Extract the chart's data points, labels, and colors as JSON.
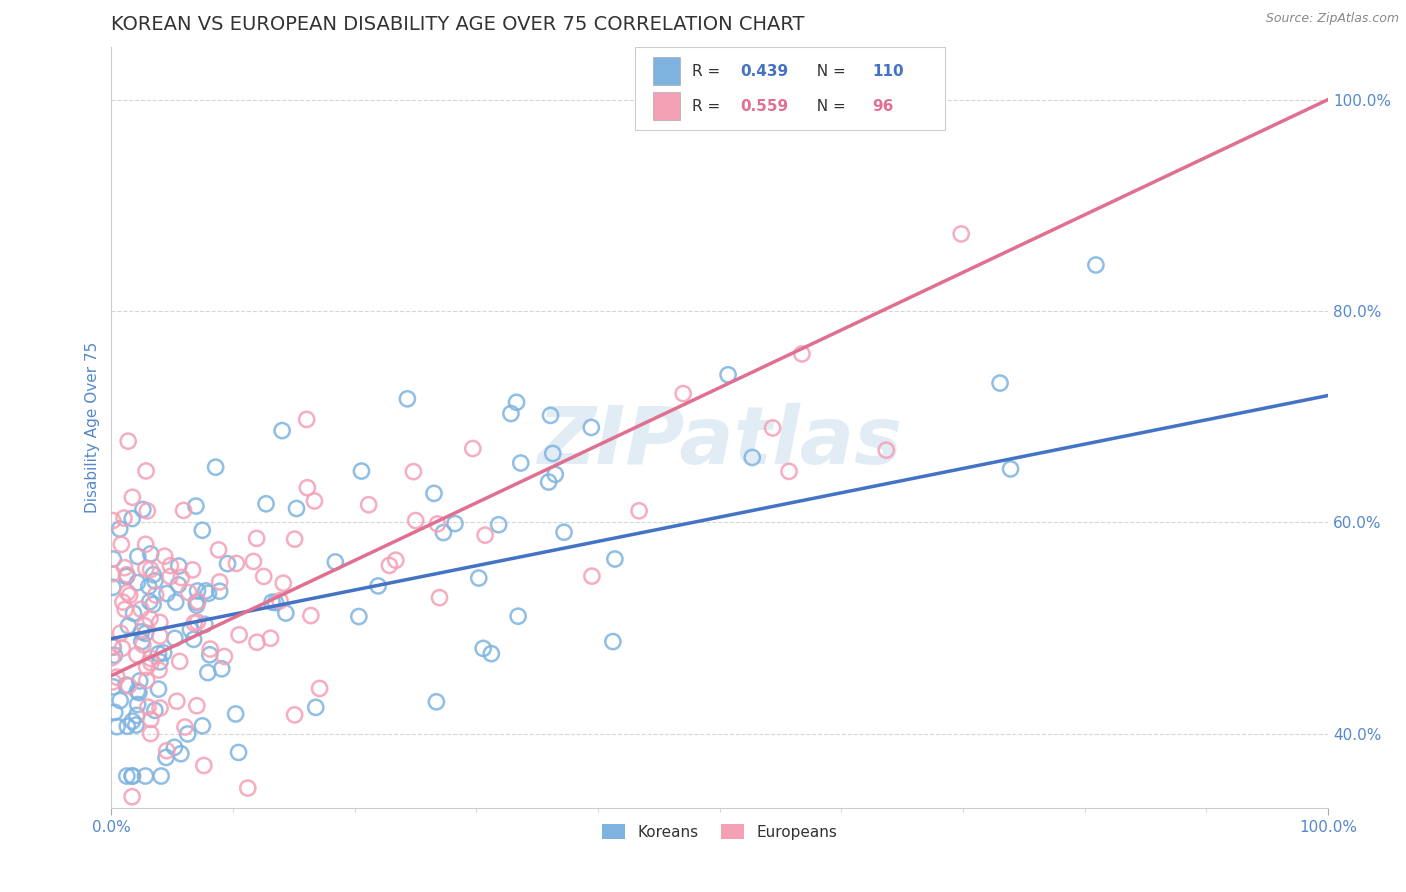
{
  "title": "KOREAN VS EUROPEAN DISABILITY AGE OVER 75 CORRELATION CHART",
  "source": "Source: ZipAtlas.com",
  "ylabel": "Disability Age Over 75",
  "xlim": [
    0.0,
    1.0
  ],
  "ylim": [
    0.33,
    1.05
  ],
  "xtick_vals": [
    0.0,
    1.0
  ],
  "xtick_labels": [
    "0.0%",
    "100.0%"
  ],
  "ytick_vals": [
    0.4,
    0.6,
    0.8,
    1.0
  ],
  "ytick_labels": [
    "40.0%",
    "60.0%",
    "80.0%",
    "100.0%"
  ],
  "korean_color": "#7eb3e0",
  "european_color": "#f4a0b5",
  "korean_R": 0.439,
  "korean_N": 110,
  "european_R": 0.559,
  "european_N": 96,
  "korean_line_color": "#4472c4",
  "european_line_color": "#e07090",
  "watermark": "ZIPatlas",
  "watermark_color": "#b8d0e8",
  "legend_label_korean": "Koreans",
  "legend_label_european": "Europeans",
  "background_color": "#ffffff",
  "title_color": "#333333",
  "axis_label_color": "#5588cc",
  "tick_color": "#5588cc",
  "title_fontsize": 14,
  "label_fontsize": 11,
  "tick_fontsize": 11,
  "korean_line_start_y": 0.49,
  "korean_line_end_y": 0.72,
  "european_line_start_y": 0.455,
  "european_line_end_y": 1.0
}
